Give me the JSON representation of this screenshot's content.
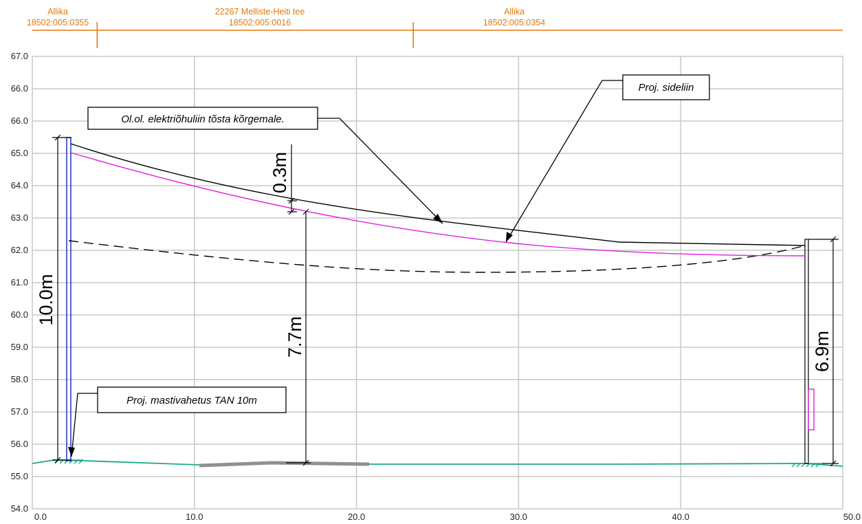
{
  "parcels": [
    {
      "name": "Allika",
      "code": "18502:005:0355"
    },
    {
      "name": "22267 Melliste-Heiti tee",
      "code": "18502:005:0016"
    },
    {
      "name": "Allika",
      "code": "18502:005:0354"
    }
  ],
  "parcel_boundaries_x": [
    4.0,
    23.5
  ],
  "axes": {
    "x_ticks": [
      "0.0",
      "10.0",
      "20.0",
      "30.0",
      "40.0",
      "50.0"
    ],
    "y_ticks": [
      "54.0",
      "55.0",
      "56.0",
      "57.0",
      "58.0",
      "59.0",
      "60.0",
      "61.0",
      "62.0",
      "63.0",
      "64.0",
      "65.0",
      "66.0",
      "66.0",
      "67.0"
    ],
    "xlim": [
      0,
      50
    ],
    "grid": true
  },
  "callouts": {
    "power_line": "Ol.ol. elektriõhuliin tõsta kõrgemale.",
    "telecom_line": "Proj. sideliin",
    "mast": "Proj. mastivahetus TAN 10m"
  },
  "dimensions": {
    "mast_height": "10.0m",
    "clearance": "0.3m",
    "height_mid": "7.7m",
    "height_right": "6.9m"
  },
  "colors": {
    "parcel_line": "#e07a10",
    "ground": "#1aa88a",
    "road": "#909090",
    "telecom": "#e020e0",
    "mast_left": "#2030c0",
    "power": "#000000",
    "grid": "#c8c8c8"
  }
}
